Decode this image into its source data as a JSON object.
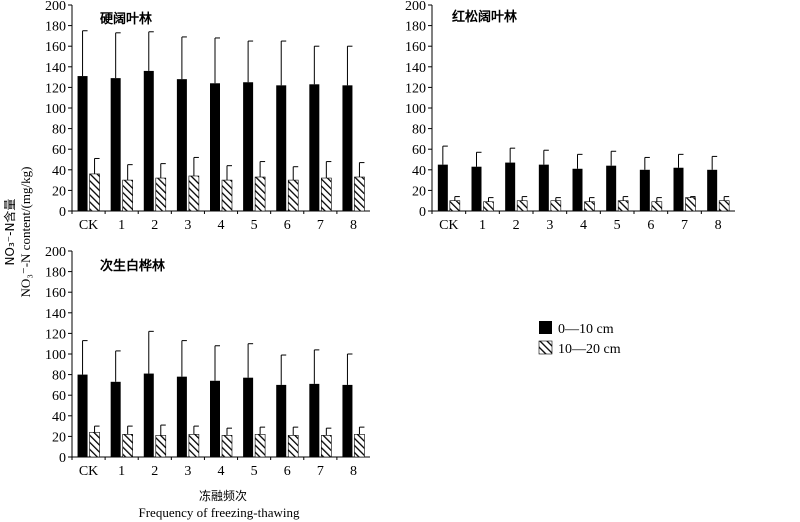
{
  "chart_data": [
    {
      "type": "bar",
      "title": "硬阔叶林",
      "categories": [
        "CK",
        "1",
        "2",
        "3",
        "4",
        "5",
        "6",
        "7",
        "8"
      ],
      "ylim": [
        0,
        200
      ],
      "yticks": [
        0,
        20,
        40,
        60,
        80,
        100,
        120,
        140,
        160,
        180,
        200
      ],
      "series": [
        {
          "name": "0—10 cm",
          "values": [
            131,
            129,
            136,
            128,
            124,
            125,
            122,
            123,
            122
          ],
          "errors": [
            44,
            44,
            38,
            41,
            44,
            40,
            43,
            37,
            38
          ]
        },
        {
          "name": "10—20 cm",
          "values": [
            36,
            30,
            32,
            34,
            30,
            33,
            30,
            32,
            33
          ],
          "errors": [
            15,
            15,
            14,
            18,
            14,
            15,
            13,
            16,
            14
          ]
        }
      ]
    },
    {
      "type": "bar",
      "title": "红松阔叶林",
      "categories": [
        "CK",
        "1",
        "2",
        "3",
        "4",
        "5",
        "6",
        "7",
        "8"
      ],
      "ylim": [
        0,
        200
      ],
      "yticks": [
        0,
        20,
        40,
        60,
        80,
        100,
        120,
        140,
        160,
        180,
        200
      ],
      "series": [
        {
          "name": "0—10 cm",
          "values": [
            45,
            43,
            47,
            45,
            41,
            44,
            40,
            42,
            40
          ],
          "errors": [
            18,
            14,
            14,
            14,
            14,
            14,
            12,
            13,
            13
          ]
        },
        {
          "name": "10—20 cm",
          "values": [
            10,
            9,
            10,
            10,
            9,
            10,
            9,
            13,
            10
          ],
          "errors": [
            4,
            4,
            4,
            3,
            4,
            4,
            4,
            1,
            4
          ]
        }
      ]
    },
    {
      "type": "bar",
      "title": "次生白桦林",
      "categories": [
        "CK",
        "1",
        "2",
        "3",
        "4",
        "5",
        "6",
        "7",
        "8"
      ],
      "ylim": [
        0,
        200
      ],
      "yticks": [
        0,
        20,
        40,
        60,
        80,
        100,
        120,
        140,
        160,
        180,
        200
      ],
      "series": [
        {
          "name": "0—10 cm",
          "values": [
            80,
            73,
            81,
            78,
            74,
            77,
            70,
            71,
            70
          ],
          "errors": [
            33,
            30,
            41,
            35,
            34,
            33,
            29,
            33,
            30
          ]
        },
        {
          "name": "10—20 cm",
          "values": [
            24,
            22,
            21,
            22,
            21,
            22,
            21,
            21,
            22
          ],
          "errors": [
            6,
            8,
            10,
            8,
            7,
            7,
            8,
            7,
            7
          ]
        }
      ]
    }
  ],
  "ylabel_cn": "NO₃⁻-N含量",
  "ylabel_en": "NO₃⁻-N content/(mg/kg)",
  "xlabel_cn": "冻融频次",
  "xlabel_en": "Frequency of freezing-thawing",
  "legend": {
    "items": [
      {
        "label": "0—10 cm",
        "fill": "solid"
      },
      {
        "label": "10—20 cm",
        "fill": "hatched"
      }
    ]
  },
  "colors": {
    "bar": "#000000",
    "background": "#ffffff"
  }
}
